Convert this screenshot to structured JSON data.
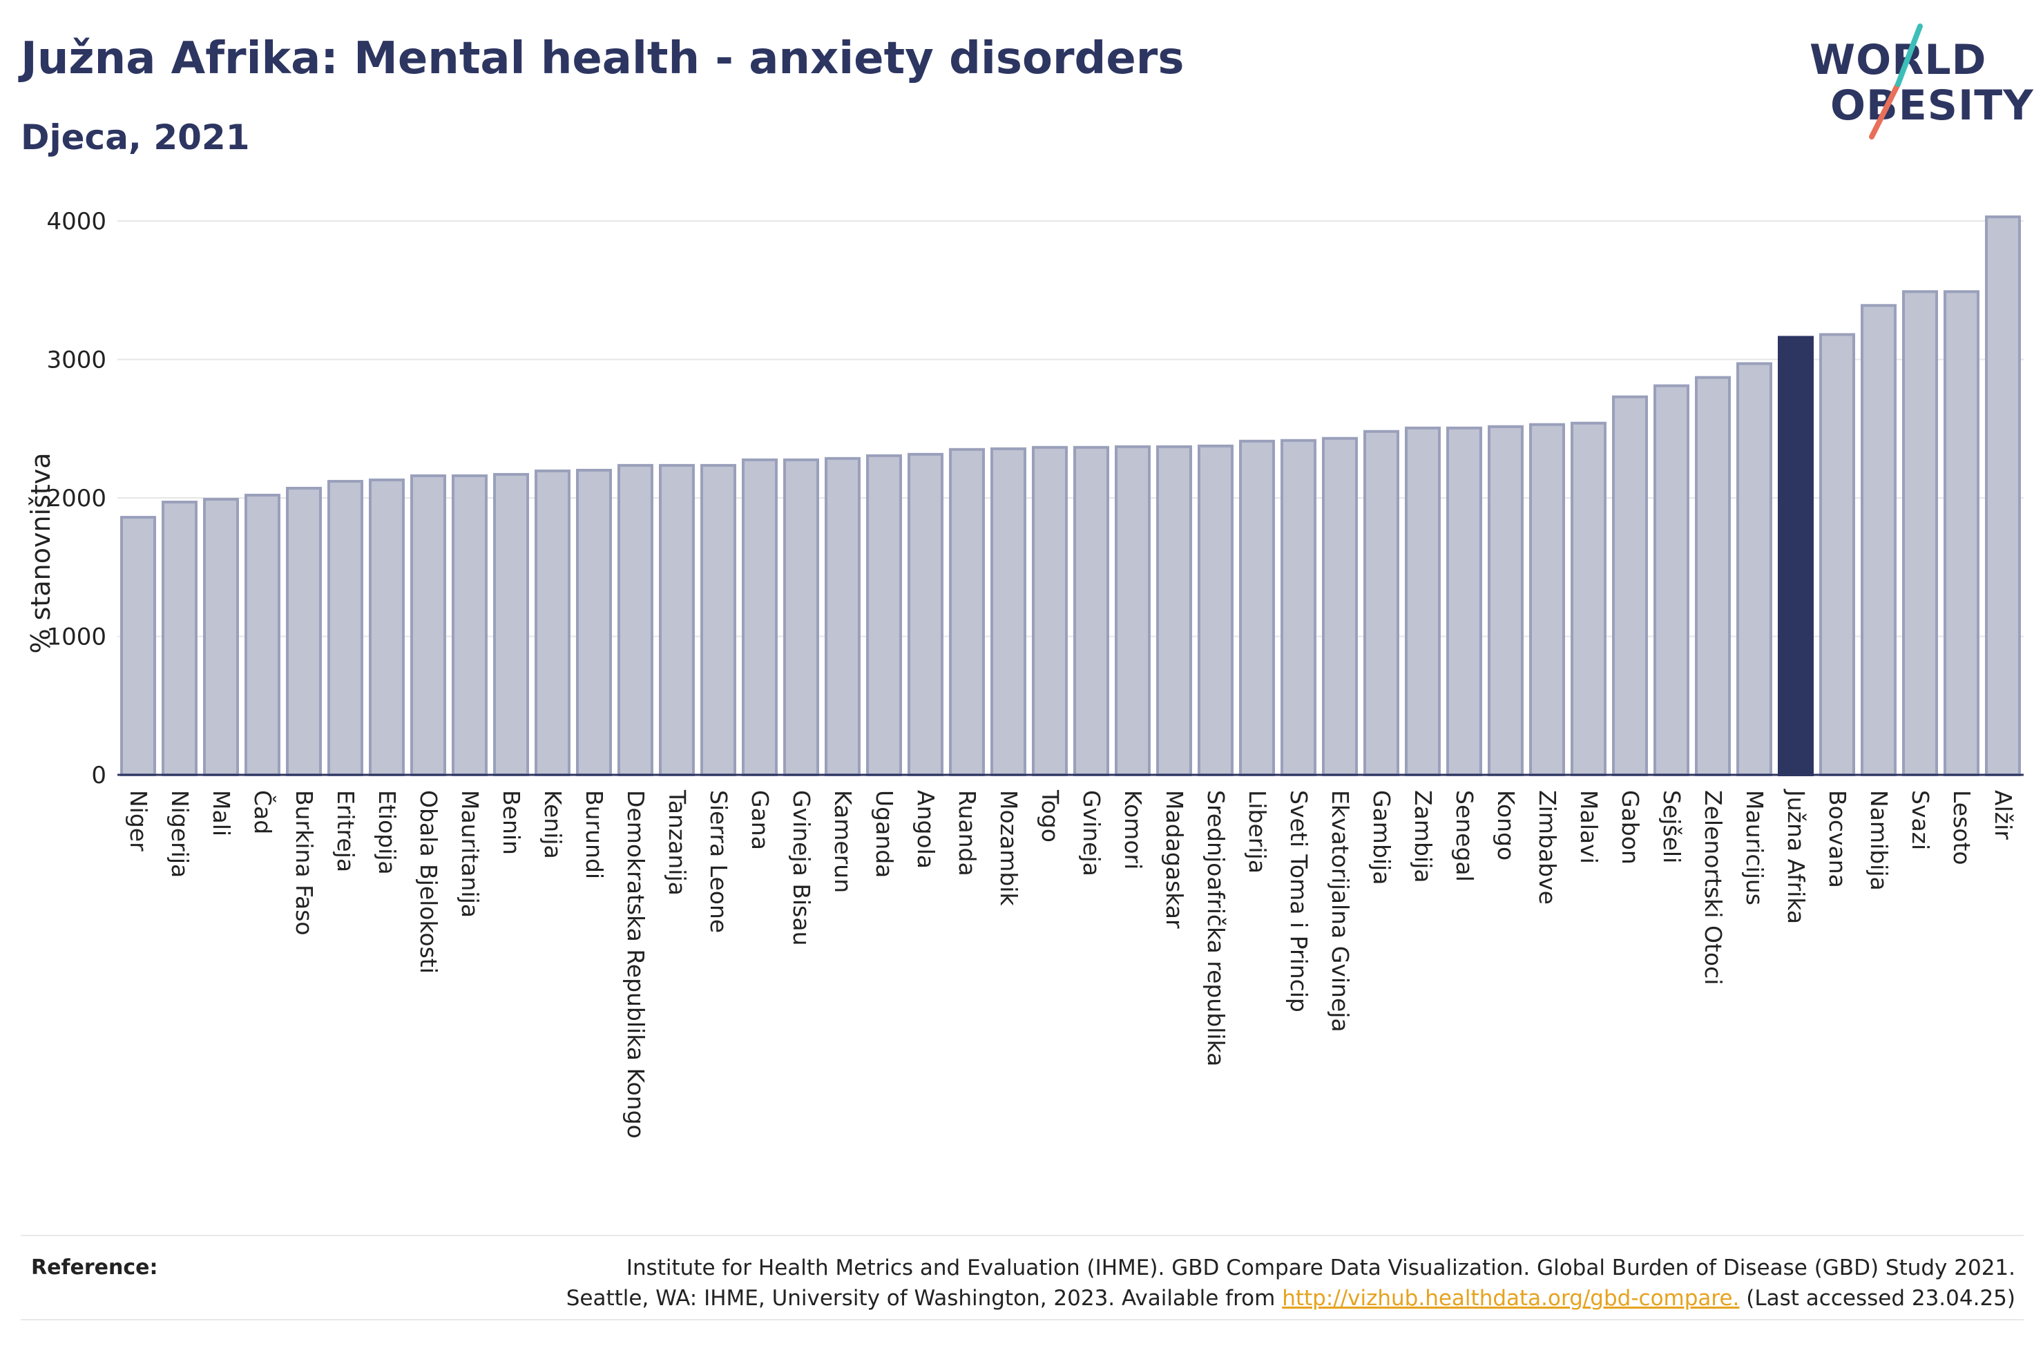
{
  "title": "Južna Afrika: Mental health - anxiety disorders",
  "subtitle": "Djeca, 2021",
  "logo": {
    "line1": "WORLD",
    "line2": "OBESITY"
  },
  "colors": {
    "highlight": "#2d3561",
    "bar": "#bfc3d2",
    "bar_stroke": "#9aa0bb",
    "accent_teal": "#3dbfb8",
    "accent_red": "#e8705a"
  },
  "chart_data": {
    "type": "bar",
    "ylabel": "% stanovništva",
    "ylim": [
      0,
      4100
    ],
    "yticks": [
      0,
      1000,
      2000,
      3000,
      4000
    ],
    "grid": true,
    "highlight": "Južna Afrika",
    "categories": [
      "Niger",
      "Nigerija",
      "Mali",
      "Čad",
      "Burkina Faso",
      "Eritreja",
      "Etiopija",
      "Obala Bjelokosti",
      "Mauritanija",
      "Benin",
      "Kenija",
      "Burundi",
      "Demokratska Republika Kongo",
      "Tanzanija",
      "Sierra Leone",
      "Gana",
      "Gvineja Bisau",
      "Kamerun",
      "Uganda",
      "Angola",
      "Ruanda",
      "Mozambik",
      "Togo",
      "Gvineja",
      "Komori",
      "Madagaskar",
      "Srednjoafrička republika",
      "Liberija",
      "Sveti Toma i Princip",
      "Ekvatorijalna Gvineja",
      "Gambija",
      "Zambija",
      "Senegal",
      "Kongo",
      "Zimbabve",
      "Malavi",
      "Gabon",
      "Sejšeli",
      "Zelenortski Otoci",
      "Mauricijus",
      "Južna Afrika",
      "Bocvana",
      "Namibija",
      "Svazi",
      "Lesoto",
      "Alžir"
    ],
    "values": [
      1860,
      1970,
      1990,
      2020,
      2070,
      2120,
      2130,
      2160,
      2160,
      2170,
      2195,
      2200,
      2235,
      2235,
      2235,
      2275,
      2275,
      2285,
      2305,
      2315,
      2350,
      2355,
      2365,
      2365,
      2370,
      2370,
      2375,
      2410,
      2415,
      2430,
      2480,
      2505,
      2505,
      2515,
      2530,
      2540,
      2730,
      2810,
      2870,
      2970,
      3160,
      3180,
      3390,
      3490,
      3490,
      4030
    ]
  },
  "reference": {
    "label": "Reference:",
    "line1": "Institute for Health Metrics and Evaluation (IHME). GBD Compare Data Visualization. Global Burden of Disease (GBD) Study 2021.",
    "line2_pre": "Seattle, WA: IHME, University of Washington, 2023. Available from ",
    "link": "http://vizhub.healthdata.org/gbd-compare.",
    "line2_post": " (Last accessed 23.04.25)"
  }
}
